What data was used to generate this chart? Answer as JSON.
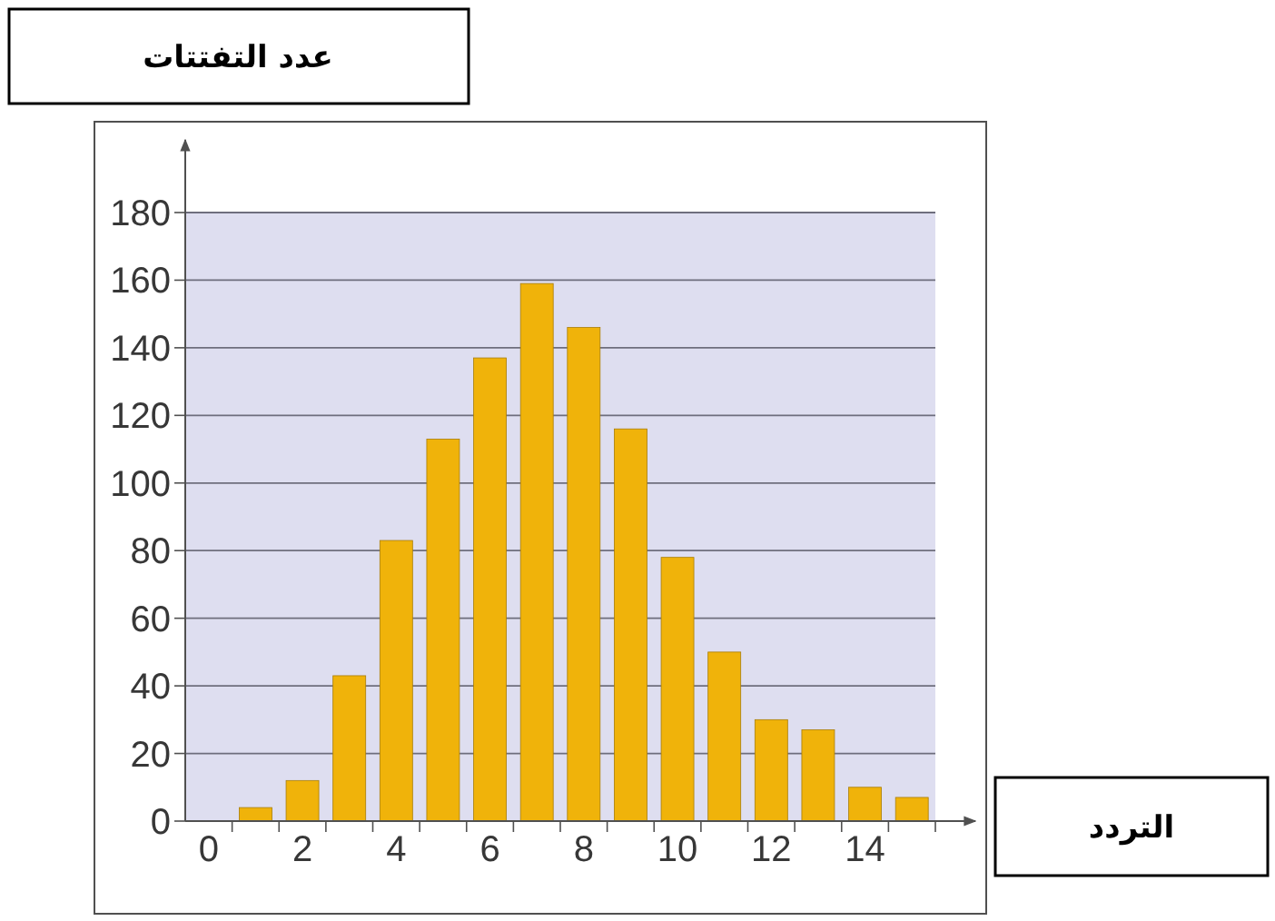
{
  "chart_data": {
    "type": "bar",
    "xlabel": "التردد",
    "ylabel": "عدد التفتتات",
    "x": [
      1,
      2,
      3,
      4,
      5,
      6,
      7,
      8,
      9,
      10,
      11,
      12,
      13,
      14,
      15
    ],
    "values": [
      4,
      12,
      43,
      83,
      113,
      137,
      159,
      146,
      116,
      78,
      50,
      30,
      27,
      10,
      7
    ],
    "color": "#f0b30a",
    "xlim": [
      -0.5,
      15.5
    ],
    "ylim": [
      0,
      180
    ],
    "xticks": [
      0,
      2,
      4,
      6,
      8,
      10,
      12,
      14,
      {
        "value": 0.5,
        "label": null
      },
      {
        "value": 1.5,
        "label": null
      },
      {
        "value": 2.5,
        "label": null
      },
      {
        "value": 3.5,
        "label": null
      },
      {
        "value": 4.5,
        "label": null
      },
      {
        "value": 5.5,
        "label": null
      },
      {
        "value": 6.5,
        "label": null
      },
      {
        "value": 7.5,
        "label": null
      },
      {
        "value": 8.5,
        "label": null
      },
      {
        "value": 9.5,
        "label": null
      },
      {
        "value": 10.5,
        "label": null
      },
      {
        "value": 11.5,
        "label": null
      },
      {
        "value": 12.5,
        "label": null
      },
      {
        "value": 13.5,
        "label": null
      },
      {
        "value": 14.5,
        "label": null
      },
      {
        "value": 15.5,
        "label": null
      }
    ],
    "yticks": [
      0,
      20,
      40,
      60,
      80,
      100,
      120,
      140,
      160,
      180
    ],
    "grid": "y"
  }
}
